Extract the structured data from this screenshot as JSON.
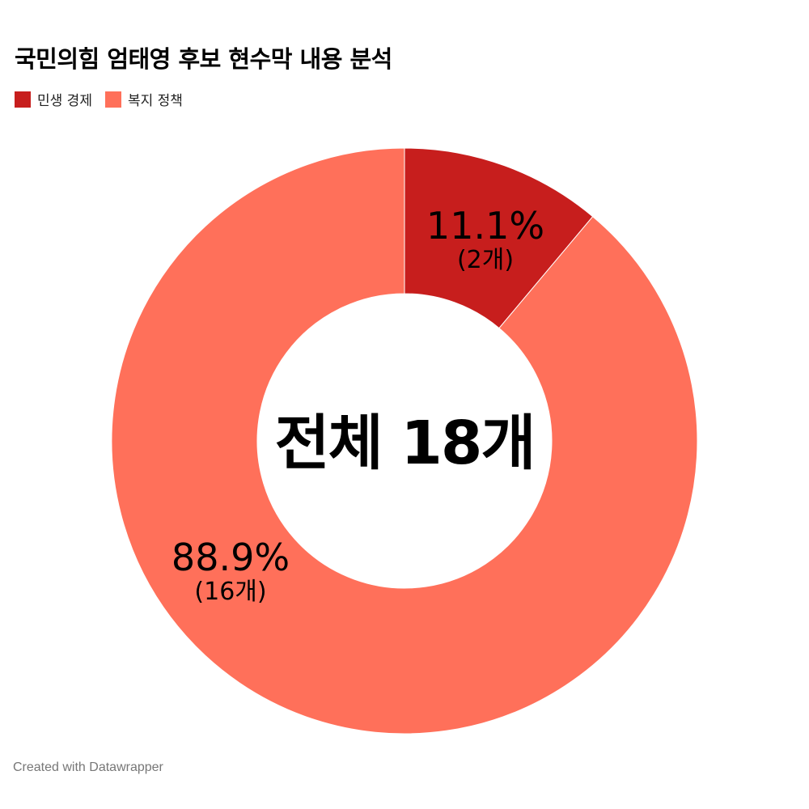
{
  "header": {
    "title": "국민의힘 엄태영 후보 현수막 내용 분석"
  },
  "legend": [
    {
      "label": "민생 경제",
      "color": "#c71e1d"
    },
    {
      "label": "복지 정책",
      "color": "#ff705a"
    }
  ],
  "center": {
    "label": "전체 18개"
  },
  "slices": [
    {
      "name": "민생 경제",
      "pct_label": "11.1%",
      "count_label": "(2개)",
      "color": "#c71e1d"
    },
    {
      "name": "복지 정책",
      "pct_label": "88.9%",
      "count_label": "(16개)",
      "color": "#ff705a"
    }
  ],
  "footer": {
    "credit": "Created with Datawrapper"
  },
  "chart_data": {
    "type": "pie",
    "subtype": "donut",
    "title": "국민의힘 엄태영 후보 현수막 내용 분석",
    "categories": [
      "민생 경제",
      "복지 정책"
    ],
    "values": [
      2,
      16
    ],
    "percentages": [
      11.1,
      88.9
    ],
    "labels": [
      "11.1% (2개)",
      "88.9% (16개)"
    ],
    "colors": [
      "#c71e1d",
      "#ff705a"
    ],
    "center_label": "전체 18개",
    "total": 18,
    "legend_position": "top-left"
  }
}
